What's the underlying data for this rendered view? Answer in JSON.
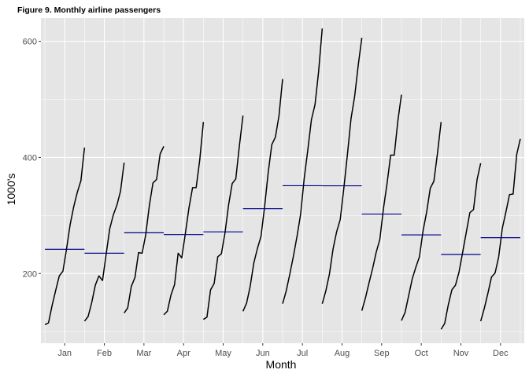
{
  "chart_data": {
    "type": "line",
    "title": "Figure 9. Monthly airline passengers",
    "xlabel": "Month",
    "ylabel": "1000's",
    "ylim": [
      80,
      640
    ],
    "yticks": [
      200,
      400,
      600
    ],
    "grid": true,
    "background": "#e5e5e5",
    "grid_color": "#ffffff",
    "line_color": "#000000",
    "mean_color": "#00008b",
    "years_per_month": 12,
    "categories": [
      "Jan",
      "Feb",
      "Mar",
      "Apr",
      "May",
      "Jun",
      "Jul",
      "Aug",
      "Sep",
      "Oct",
      "Nov",
      "Dec"
    ],
    "series": [
      {
        "month": "Jan",
        "values": [
          112,
          115,
          145,
          171,
          196,
          204,
          242,
          284,
          315,
          340,
          360,
          417
        ],
        "mean": 241.8
      },
      {
        "month": "Feb",
        "values": [
          118,
          126,
          150,
          180,
          196,
          188,
          233,
          277,
          301,
          318,
          342,
          391
        ],
        "mean": 235.0
      },
      {
        "month": "Mar",
        "values": [
          132,
          141,
          178,
          193,
          236,
          235,
          267,
          317,
          356,
          362,
          406,
          419
        ],
        "mean": 270.2
      },
      {
        "month": "Apr",
        "values": [
          129,
          135,
          163,
          181,
          235,
          227,
          269,
          313,
          348,
          348,
          396,
          461
        ],
        "mean": 267.1
      },
      {
        "month": "May",
        "values": [
          121,
          125,
          172,
          183,
          229,
          234,
          270,
          318,
          355,
          363,
          420,
          472
        ],
        "mean": 271.8
      },
      {
        "month": "Jun",
        "values": [
          135,
          149,
          178,
          218,
          243,
          264,
          315,
          374,
          422,
          435,
          472,
          535
        ],
        "mean": 311.7
      },
      {
        "month": "Jul",
        "values": [
          148,
          170,
          199,
          230,
          264,
          302,
          364,
          413,
          465,
          491,
          548,
          622
        ],
        "mean": 351.3
      },
      {
        "month": "Aug",
        "values": [
          148,
          170,
          199,
          242,
          272,
          293,
          347,
          405,
          467,
          505,
          559,
          606
        ],
        "mean": 351.1
      },
      {
        "month": "Sep",
        "values": [
          136,
          158,
          184,
          209,
          237,
          259,
          312,
          355,
          404,
          404,
          463,
          508
        ],
        "mean": 302.4
      },
      {
        "month": "Oct",
        "values": [
          119,
          133,
          162,
          191,
          211,
          229,
          274,
          306,
          347,
          359,
          407,
          461
        ],
        "mean": 266.6
      },
      {
        "month": "Nov",
        "values": [
          104,
          114,
          146,
          172,
          180,
          203,
          237,
          271,
          305,
          310,
          362,
          390
        ],
        "mean": 232.8
      },
      {
        "month": "Dec",
        "values": [
          118,
          140,
          166,
          194,
          201,
          229,
          278,
          306,
          336,
          337,
          405,
          432
        ],
        "mean": 261.8
      }
    ]
  }
}
